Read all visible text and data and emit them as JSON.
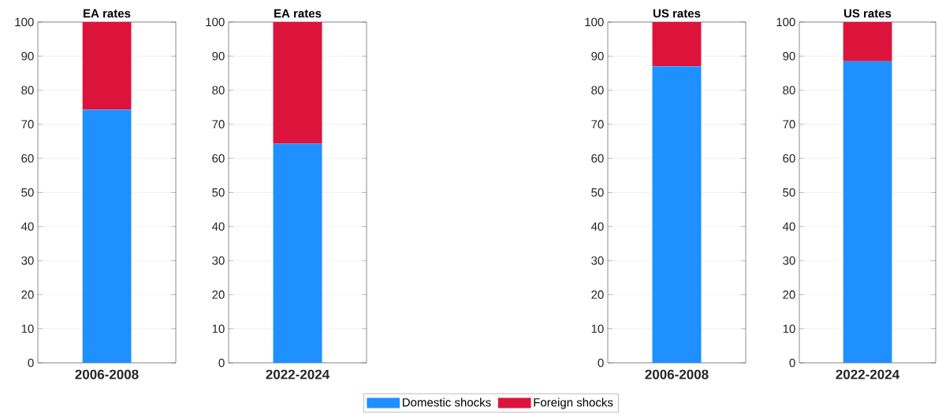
{
  "chart_data": [
    {
      "type": "bar",
      "title": "EA rates",
      "categories": [
        "2006-2008"
      ],
      "stacked": true,
      "series": [
        {
          "name": "Domestic shocks",
          "color": "#1e90ff",
          "values": [
            74.3
          ]
        },
        {
          "name": "Foreign shocks",
          "color": "#dc143c",
          "values": [
            25.7
          ]
        }
      ],
      "ylim": [
        0,
        100
      ],
      "yticks": [
        0,
        10,
        20,
        30,
        40,
        50,
        60,
        70,
        80,
        90,
        100
      ],
      "grid": "y",
      "legend": "bottom"
    },
    {
      "type": "bar",
      "title": "EA rates",
      "categories": [
        "2022-2024"
      ],
      "stacked": true,
      "series": [
        {
          "color": "#1e90ff",
          "values": [
            64.3
          ]
        },
        {
          "color": "#dc143c",
          "values": [
            35.7
          ]
        }
      ],
      "ylim": [
        0,
        100
      ],
      "yticks": [
        0,
        10,
        20,
        30,
        40,
        50,
        60,
        70,
        80,
        90,
        100
      ],
      "grid": "y"
    },
    {
      "type": "bar",
      "title": "US rates",
      "categories": [
        "2006-2008"
      ],
      "stacked": true,
      "series": [
        {
          "color": "#1e90ff",
          "values": [
            87.0
          ]
        },
        {
          "color": "#dc143c",
          "values": [
            13.0
          ]
        }
      ],
      "ylim": [
        0,
        100
      ],
      "yticks": [
        0,
        10,
        20,
        30,
        40,
        50,
        60,
        70,
        80,
        90,
        100
      ],
      "grid": "y"
    },
    {
      "type": "bar",
      "title": "US rates",
      "categories": [
        "2022-2024"
      ],
      "stacked": true,
      "series": [
        {
          "color": "#1e90ff",
          "values": [
            88.5
          ]
        },
        {
          "color": "#dc143c",
          "values": [
            11.5
          ]
        }
      ],
      "ylim": [
        0,
        100
      ],
      "yticks": [
        0,
        10,
        20,
        30,
        40,
        50,
        60,
        70,
        80,
        90,
        100
      ],
      "grid": "y"
    }
  ]
}
